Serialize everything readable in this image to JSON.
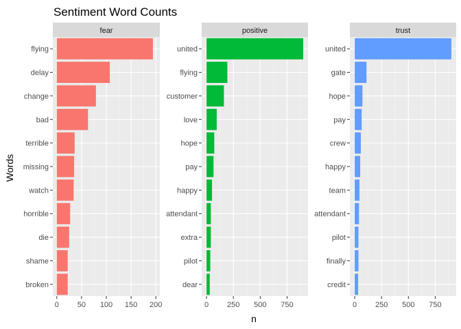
{
  "chart_data": {
    "type": "bar",
    "orientation": "horizontal",
    "title": "Sentiment Word Counts",
    "xlabel": "n",
    "ylabel": "Words",
    "grid": true,
    "legend": "none",
    "panels": [
      {
        "name": "fear",
        "color": "#F8766D",
        "xlim": [
          -8,
          208
        ],
        "xticks": [
          0,
          50,
          100,
          150,
          200
        ],
        "categories": [
          "flying",
          "delay",
          "change",
          "bad",
          "terrible",
          "missing",
          "watch",
          "horrible",
          "die",
          "shame",
          "broken"
        ],
        "values": [
          194,
          107,
          79,
          63,
          36,
          35,
          34,
          27,
          25,
          22,
          22
        ]
      },
      {
        "name": "positive",
        "color": "#00BA38",
        "xlim": [
          -45,
          945
        ],
        "xticks": [
          0,
          250,
          500,
          750
        ],
        "categories": [
          "united",
          "flying",
          "customer",
          "love",
          "hope",
          "pay",
          "happy",
          "attendant",
          "extra",
          "pilot",
          "dear"
        ],
        "values": [
          900,
          194,
          162,
          95,
          72,
          65,
          51,
          40,
          40,
          35,
          30
        ]
      },
      {
        "name": "trust",
        "color": "#619CFF",
        "xlim": [
          -45,
          945
        ],
        "xticks": [
          0,
          250,
          500,
          750
        ],
        "categories": [
          "united",
          "gate",
          "hope",
          "pay",
          "crew",
          "happy",
          "team",
          "attendant",
          "pilot",
          "finally",
          "credit"
        ],
        "values": [
          900,
          110,
          72,
          65,
          57,
          51,
          44,
          40,
          35,
          35,
          32
        ]
      }
    ]
  }
}
